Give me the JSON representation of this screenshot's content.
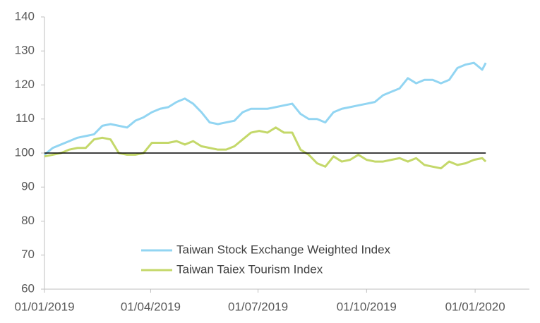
{
  "chart_data": {
    "type": "line",
    "x": [
      "01/01/2019",
      "08/01/2019",
      "15/01/2019",
      "22/01/2019",
      "29/01/2019",
      "05/02/2019",
      "12/02/2019",
      "19/02/2019",
      "26/02/2019",
      "05/03/2019",
      "12/03/2019",
      "19/03/2019",
      "26/03/2019",
      "02/04/2019",
      "09/04/2019",
      "16/04/2019",
      "23/04/2019",
      "30/04/2019",
      "07/05/2019",
      "14/05/2019",
      "21/05/2019",
      "28/05/2019",
      "04/06/2019",
      "11/06/2019",
      "18/06/2019",
      "25/06/2019",
      "02/07/2019",
      "09/07/2019",
      "16/07/2019",
      "23/07/2019",
      "30/07/2019",
      "06/08/2019",
      "13/08/2019",
      "20/08/2019",
      "27/08/2019",
      "03/09/2019",
      "10/09/2019",
      "17/09/2019",
      "24/09/2019",
      "01/10/2019",
      "08/10/2019",
      "15/10/2019",
      "22/10/2019",
      "29/10/2019",
      "05/11/2019",
      "12/11/2019",
      "19/11/2019",
      "26/11/2019",
      "03/12/2019",
      "10/12/2019",
      "17/12/2019",
      "24/12/2019",
      "31/12/2019",
      "07/01/2020",
      "10/01/2020"
    ],
    "series": [
      {
        "name": "Taiwan Stock Exchange Weighted Index",
        "color": "#92d5f2",
        "values": [
          99.5,
          101.5,
          102.5,
          103.5,
          104.5,
          105,
          105.5,
          108,
          108.5,
          108,
          107.5,
          109.5,
          110.5,
          112,
          113,
          113.5,
          115,
          116,
          114.5,
          112,
          109,
          108.5,
          109,
          109.5,
          112,
          113,
          113,
          113,
          113.5,
          114,
          114.5,
          111.5,
          110,
          110,
          109,
          112,
          113,
          113.5,
          114,
          114.5,
          115,
          117,
          118,
          119,
          122,
          120.5,
          121.5,
          121.5,
          120.5,
          121.5,
          125,
          126,
          126.5,
          124.5,
          126.5
        ]
      },
      {
        "name": "Taiwan Taiex Tourism Index",
        "color": "#c4d86a",
        "values": [
          99,
          99.5,
          100,
          101,
          101.5,
          101.5,
          104,
          104.5,
          104,
          100,
          99.5,
          99.5,
          100,
          103,
          103,
          103,
          103.5,
          102.5,
          103.5,
          102,
          101.5,
          101,
          101,
          102,
          104,
          106,
          106.5,
          106,
          107.5,
          106,
          106,
          101,
          99.5,
          97,
          96,
          99,
          97.5,
          98,
          99.5,
          98,
          97.5,
          97.5,
          98,
          98.5,
          97.5,
          98.5,
          96.5,
          96,
          95.5,
          97.5,
          96.5,
          97,
          98,
          98.5,
          97.5
        ]
      }
    ],
    "hline": 100,
    "ylim": [
      60,
      140
    ],
    "yticks": [
      60,
      70,
      80,
      90,
      100,
      110,
      120,
      130,
      140
    ],
    "xlim": [
      "01/01/2019",
      "16/02/2020"
    ],
    "xticks": [
      "01/01/2019",
      "01/04/2019",
      "01/07/2019",
      "01/10/2019",
      "01/01/2020"
    ]
  }
}
